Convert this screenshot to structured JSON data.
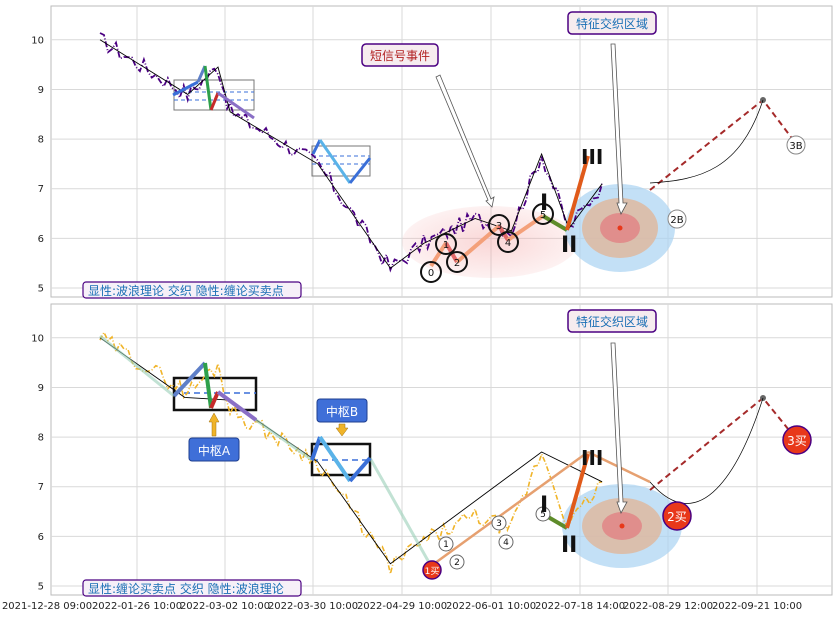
{
  "chart_data": {
    "type": "line",
    "x_ticks": [
      "2021-12-28 09:00",
      "2022-01-26 10:00",
      "2022-03-02 10:00",
      "2022-03-30 10:00",
      "2022-04-29 10:00",
      "2022-06-01 10:00",
      "2022-07-18 14:00",
      "2022-08-29 12:00",
      "2022-09-21 10:00"
    ],
    "ylim": [
      4.9,
      10.6
    ],
    "y_ticks": [
      5,
      6,
      7,
      8,
      9,
      10
    ],
    "grid": true,
    "colors": {
      "price_top": "#4b0082",
      "price_bottom": "#f0b429",
      "trend": "#000000",
      "dashed": "#a52a2a",
      "box_border_top": "#888888",
      "box_border_bottom": "#111111",
      "label_border": "#4b0082",
      "label_text": "#1a6fb5",
      "red_label_text": "#b22222",
      "blue_fill": "#3f6fd8"
    },
    "panels": [
      {
        "id": "top",
        "trend_line": [
          [
            0,
            10
          ],
          [
            14.5,
            8.9
          ],
          [
            19.5,
            9.45
          ],
          [
            21.5,
            8.55
          ],
          [
            36,
            7.5
          ],
          [
            48,
            5.4
          ],
          [
            53.5,
            5.9
          ],
          [
            62,
            6.4
          ],
          [
            68,
            6.15
          ],
          [
            73,
            7.7
          ],
          [
            77.5,
            6.2
          ],
          [
            83,
            7.1
          ]
        ],
        "annotations": [
          {
            "text": "短信号事件",
            "style": "red"
          },
          {
            "text": "特征交织区域",
            "style": "blue"
          }
        ],
        "point_labels": [
          "0",
          "1",
          "2",
          "3",
          "4",
          "5"
        ],
        "roman_labels": [
          "I",
          "II",
          "III"
        ],
        "buy_sell_labels": [
          "2B",
          "3B"
        ],
        "footer": "显性:波浪理论 交织 隐性:缠论买卖点"
      },
      {
        "id": "bottom",
        "trend_line": [
          [
            0,
            10
          ],
          [
            14,
            8.8
          ],
          [
            21,
            8.75
          ],
          [
            36,
            7.5
          ],
          [
            48,
            5.45
          ],
          [
            73,
            7.7
          ],
          [
            83,
            7.1
          ]
        ],
        "annotations": [
          {
            "text": "中枢A",
            "style": "filled"
          },
          {
            "text": "中枢B",
            "style": "filled"
          },
          {
            "text": "特征交织区域",
            "style": "blue"
          }
        ],
        "point_labels": [
          "1",
          "2",
          "3",
          "4",
          "5"
        ],
        "roman_labels": [
          "I",
          "II",
          "III"
        ],
        "buy_sell_labels": [
          "1买",
          "2买",
          "3买"
        ],
        "footer": "显性:缠论买卖点 交织 隐性:波浪理论"
      }
    ]
  }
}
